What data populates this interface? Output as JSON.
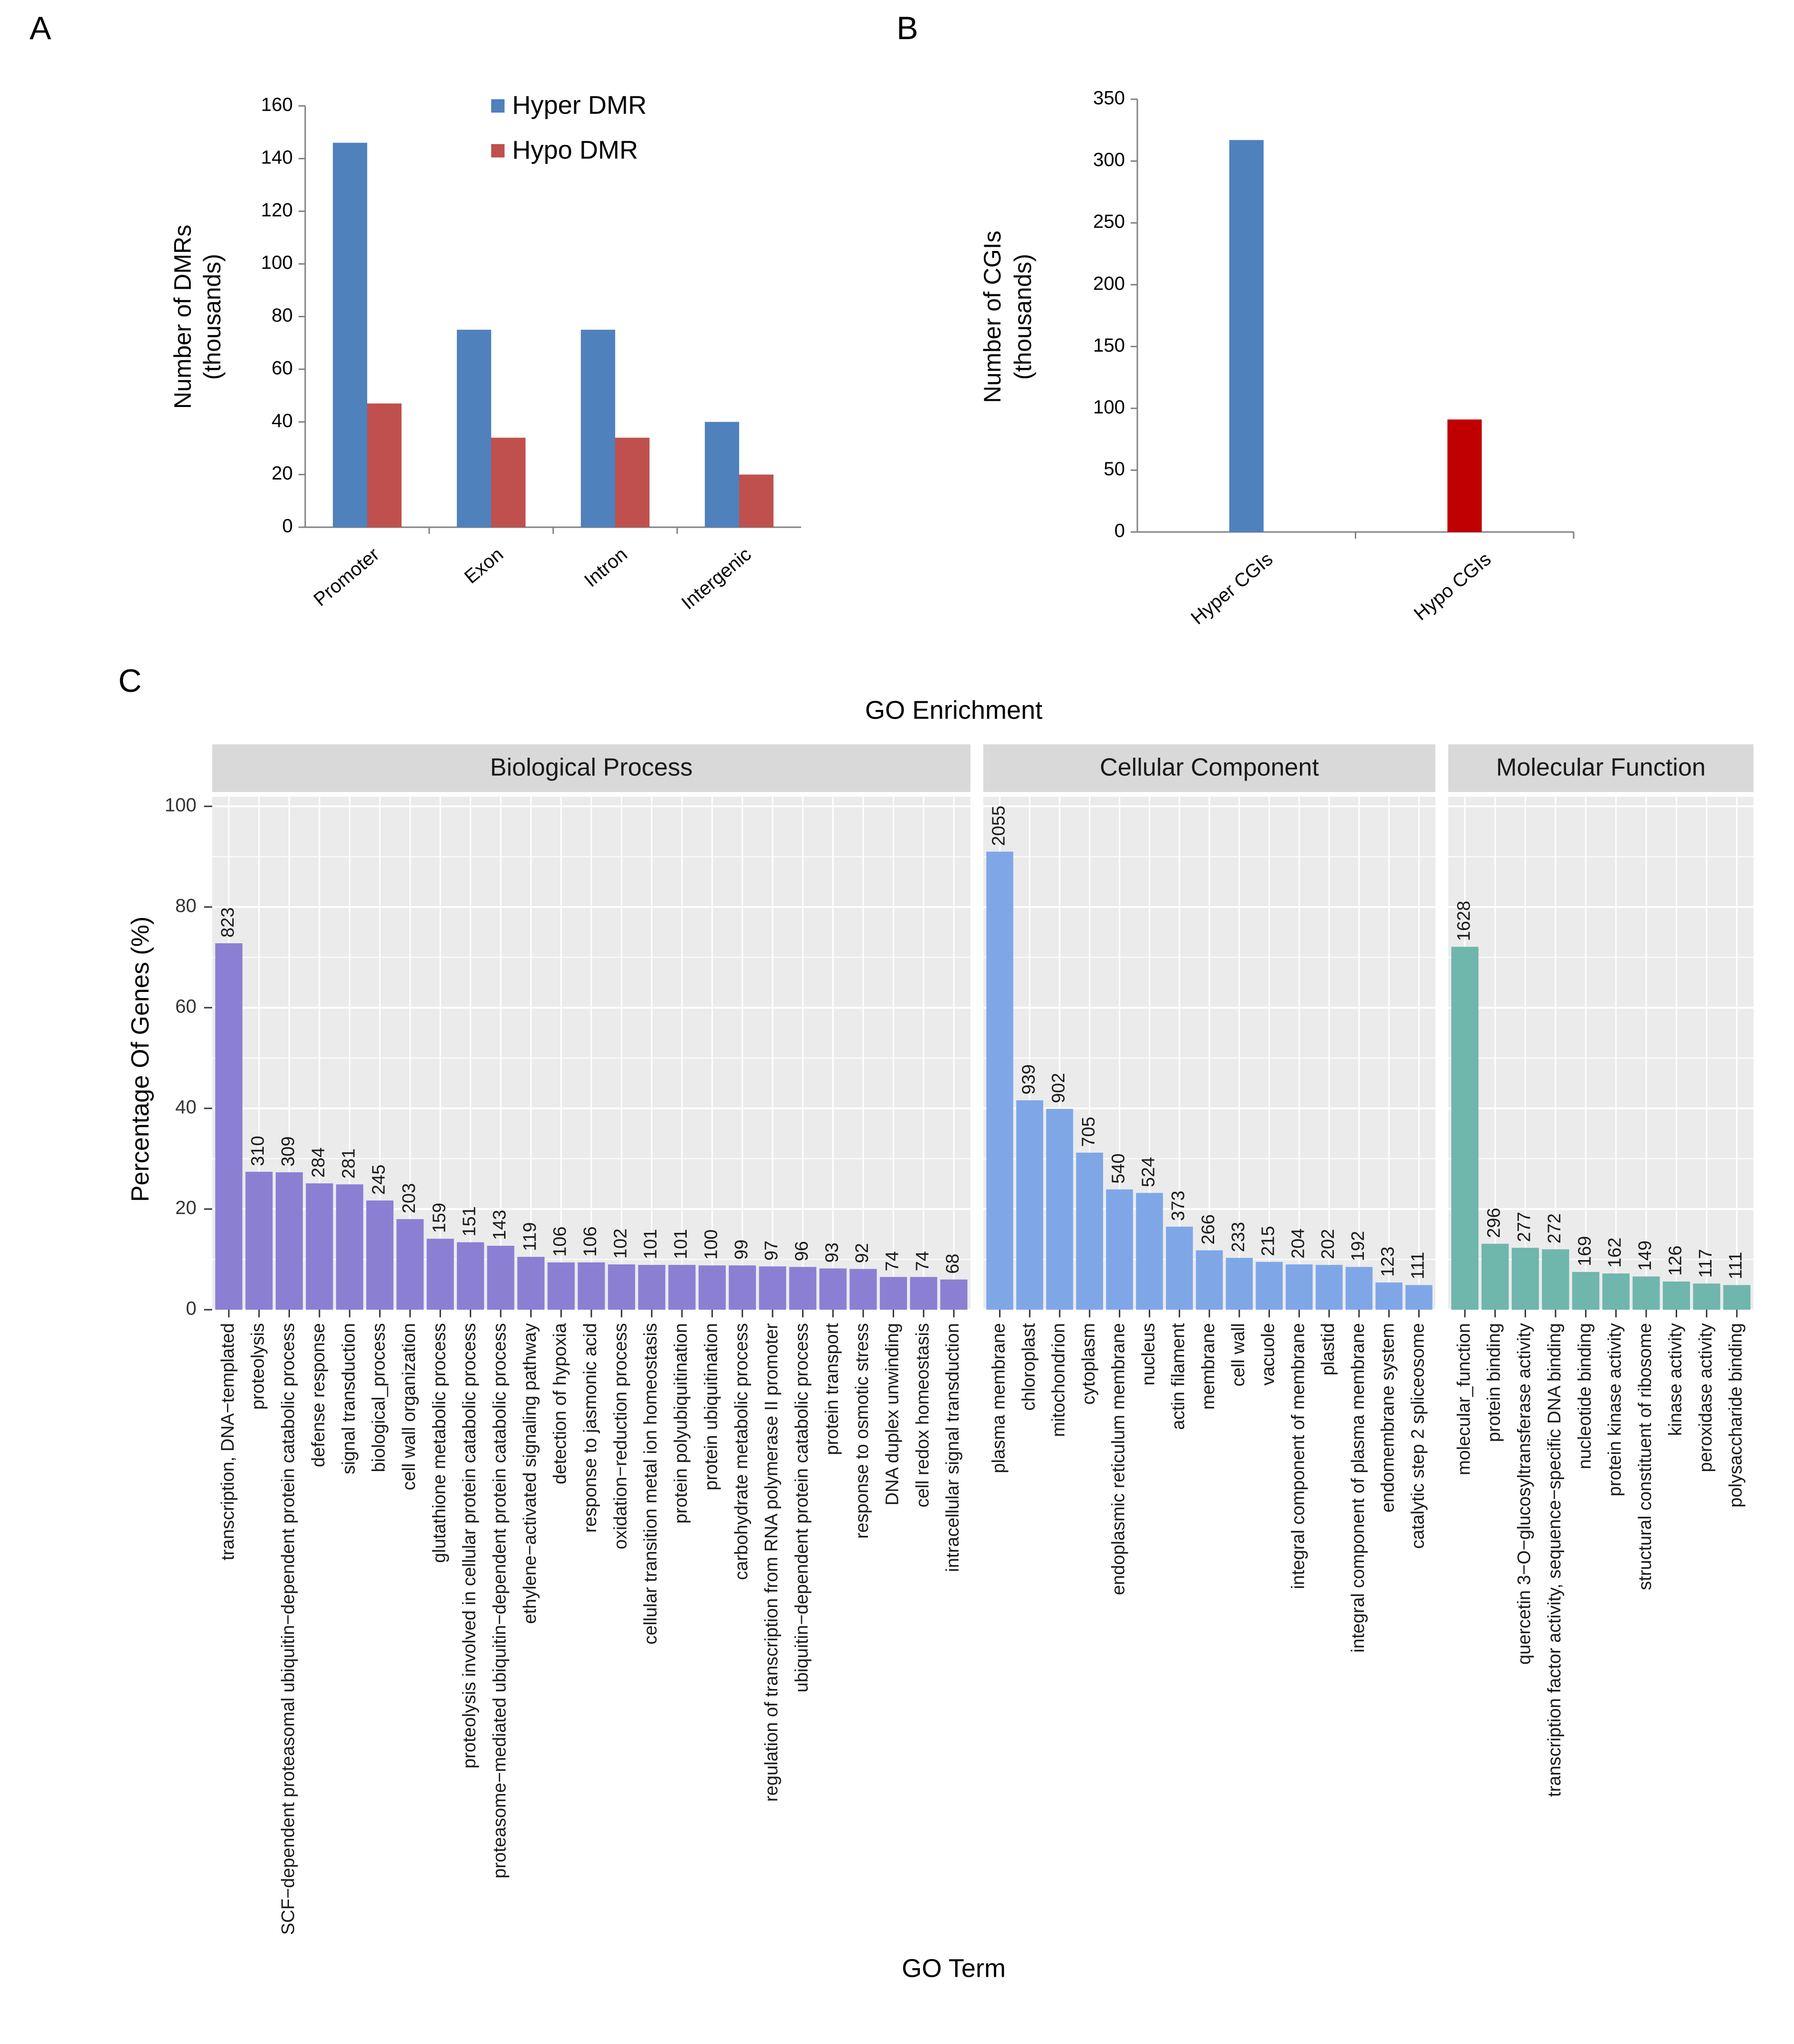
{
  "panel_labels": [
    "A",
    "B",
    "C"
  ],
  "colors": {
    "hyper": "#4f81bd",
    "hypo_a": "#c0504d",
    "hypo_b": "#c00000",
    "bp": "#8b7fd4",
    "cc": "#7fa7e8",
    "mf": "#6fb6ad",
    "panel_bg": "#ebebeb",
    "strip_bg": "#d9d9d9",
    "grid": "#ffffff"
  },
  "chart_data": [
    {
      "id": "A",
      "type": "bar",
      "categories": [
        "Promoter",
        "Exon",
        "Intron",
        "Intergenic"
      ],
      "series": [
        {
          "name": "Hyper DMR",
          "values": [
            146,
            75,
            75,
            40
          ]
        },
        {
          "name": "Hypo DMR",
          "values": [
            47,
            34,
            34,
            20
          ]
        }
      ],
      "ylabel": [
        "Number of  DMRs",
        "(thousands)"
      ],
      "ylim": [
        0,
        160
      ],
      "yticks": [
        0,
        20,
        40,
        60,
        80,
        100,
        120,
        140,
        160
      ],
      "legend": "top-right"
    },
    {
      "id": "B",
      "type": "bar",
      "categories": [
        "Hyper CGIs",
        "Hypo CGIs"
      ],
      "values": [
        317,
        91
      ],
      "ylabel": [
        "Number of  CGIs",
        "(thousands)"
      ],
      "ylim": [
        0,
        350
      ],
      "yticks": [
        0,
        50,
        100,
        150,
        200,
        250,
        300,
        350
      ]
    },
    {
      "id": "C",
      "type": "bar",
      "title": "GO Enrichment",
      "xlabel": "GO Term",
      "ylabel": "Percentage Of Genes (%)",
      "ylim": [
        0,
        100
      ],
      "yticks": [
        0,
        20,
        40,
        60,
        80,
        100
      ],
      "facets": [
        {
          "name": "Biological Process",
          "terms": [
            "transcription, DNA−templated",
            "proteolysis",
            "SCF−dependent proteasomal ubiquitin−dependent protein catabolic process",
            "defense response",
            "signal transduction",
            "biological_process",
            "cell wall organization",
            "glutathione metabolic process",
            "proteolysis involved in cellular protein catabolic process",
            "proteasome−mediated ubiquitin−dependent protein catabolic process",
            "ethylene−activated signaling pathway",
            "detection of hypoxia",
            "response to jasmonic acid",
            "oxidation−reduction process",
            "cellular transition metal ion homeostasis",
            "protein polyubiquitination",
            "protein ubiquitination",
            "carbohydrate metabolic process",
            "regulation of transcription from RNA polymerase II promoter",
            "ubiquitin−dependent protein catabolic process",
            "protein transport",
            "response to osmotic stress",
            "DNA duplex unwinding",
            "cell redox homeostasis",
            "intracellular signal transduction"
          ],
          "counts": [
            "823",
            "310",
            "309",
            "284",
            "281",
            "245",
            "203",
            "159",
            "151",
            "143",
            "119",
            "106",
            "106",
            "102",
            "101",
            "101",
            "100",
            "99",
            "97",
            "96",
            "93",
            "92",
            "74",
            "74",
            "68"
          ],
          "percent": [
            72.8,
            27.4,
            27.3,
            25.1,
            24.9,
            21.7,
            18.0,
            14.1,
            13.4,
            12.7,
            10.5,
            9.4,
            9.4,
            9.0,
            8.9,
            8.9,
            8.8,
            8.8,
            8.6,
            8.5,
            8.2,
            8.1,
            6.5,
            6.5,
            6.0
          ]
        },
        {
          "name": "Cellular Component",
          "terms": [
            "plasma membrane",
            "chloroplast",
            "mitochondrion",
            "cytoplasm",
            "endoplasmic reticulum membrane",
            "nucleus",
            "actin filament",
            "membrane",
            "cell wall",
            "vacuole",
            "integral component of membrane",
            "plastid",
            "integral component of plasma membrane",
            "endomembrane system",
            "catalytic step 2 spliceosome"
          ],
          "counts": [
            "2055",
            "939",
            "902",
            "705",
            "540",
            "524",
            "373",
            "266",
            "233",
            "215",
            "204",
            "202",
            "192",
            "123",
            "111"
          ],
          "percent": [
            91.0,
            41.6,
            39.9,
            31.2,
            23.9,
            23.2,
            16.5,
            11.8,
            10.3,
            9.5,
            9.0,
            8.9,
            8.5,
            5.4,
            4.9
          ]
        },
        {
          "name": "Molecular Function",
          "terms": [
            "molecular_function",
            "protein binding",
            "quercetin 3−O−glucosyltransferase activity",
            "transcription factor activity, sequence−specific DNA binding",
            "nucleotide binding",
            "protein kinase activity",
            "structural constituent of ribosome",
            "kinase activity",
            "peroxidase activity",
            "polysaccharide binding"
          ],
          "counts": [
            "1628",
            "296",
            "277",
            "272",
            "169",
            "162",
            "149",
            "126",
            "117",
            "111"
          ],
          "percent": [
            72.1,
            13.1,
            12.3,
            12.0,
            7.5,
            7.2,
            6.6,
            5.6,
            5.2,
            4.9
          ]
        }
      ]
    }
  ]
}
